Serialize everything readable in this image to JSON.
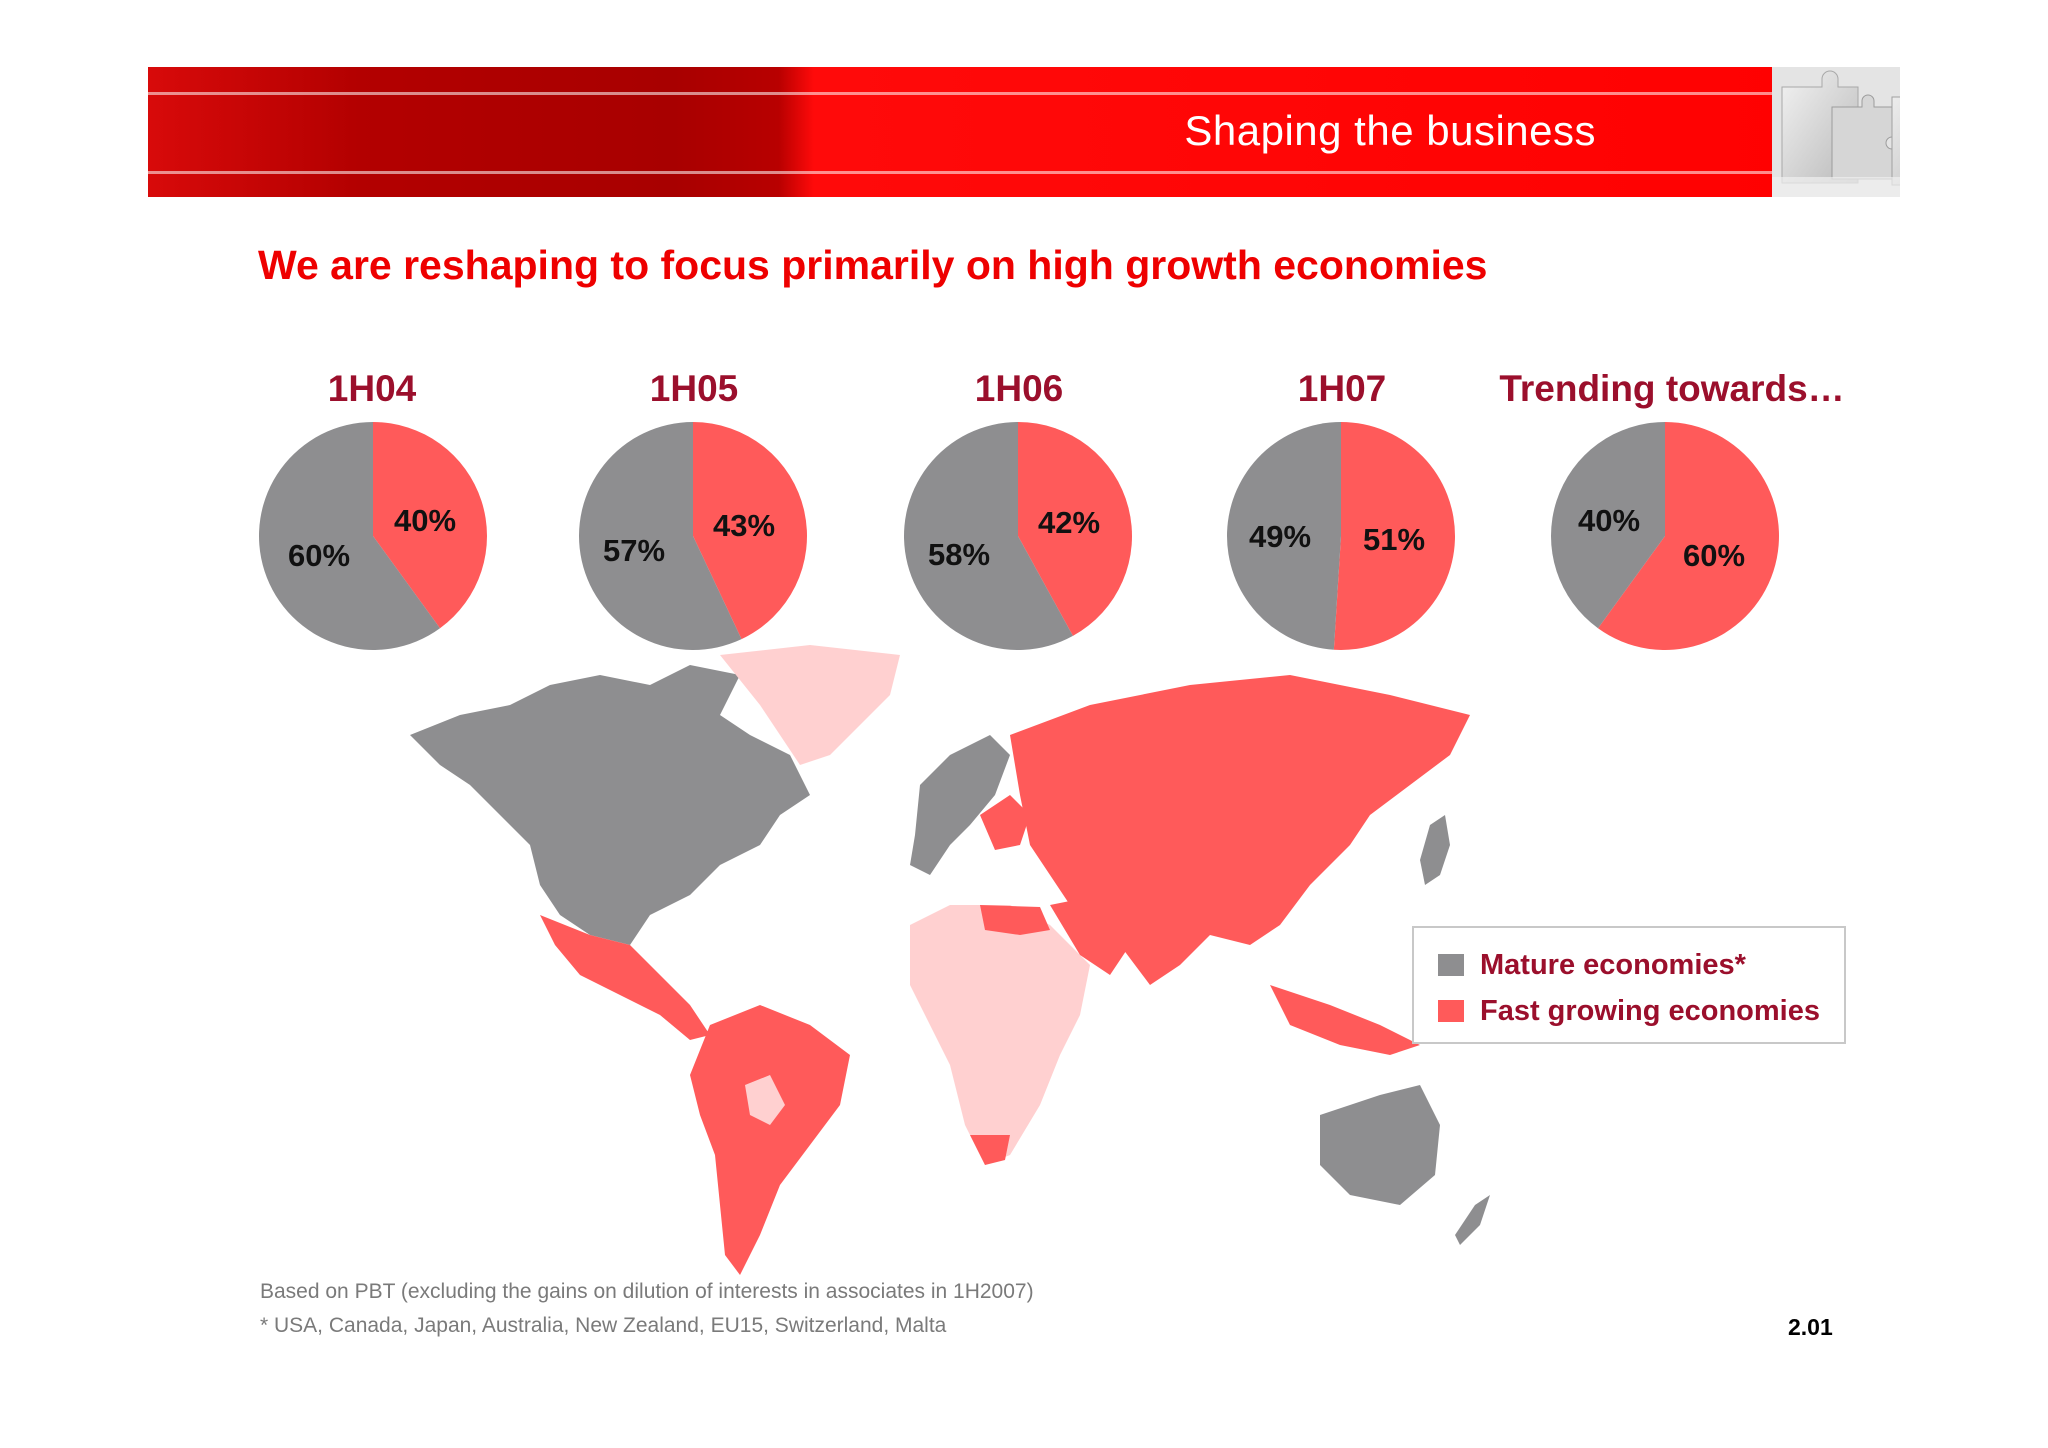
{
  "header": {
    "banner_title": "Shaping the business",
    "headline": "We are reshaping to focus primarily on high growth economies"
  },
  "colors": {
    "mature": "#8e8e90",
    "fast": "#ff5a5a",
    "other_countries": "#ffd0d0",
    "banner_red": "#ff0000",
    "title_maroon": "#9b0f2c"
  },
  "chart_data": {
    "type": "pie",
    "charts": [
      {
        "label": "1H04",
        "slices": [
          {
            "name": "Fast growing economies",
            "value": 40,
            "label": "40%"
          },
          {
            "name": "Mature economies*",
            "value": 60,
            "label": "60%"
          }
        ]
      },
      {
        "label": "1H05",
        "slices": [
          {
            "name": "Fast growing economies",
            "value": 43,
            "label": "43%"
          },
          {
            "name": "Mature economies*",
            "value": 57,
            "label": "57%"
          }
        ]
      },
      {
        "label": "1H06",
        "slices": [
          {
            "name": "Fast growing economies",
            "value": 42,
            "label": "42%"
          },
          {
            "name": "Mature economies*",
            "value": 58,
            "label": "58%"
          }
        ]
      },
      {
        "label": "1H07",
        "slices": [
          {
            "name": "Fast growing economies",
            "value": 51,
            "label": "51%"
          },
          {
            "name": "Mature economies*",
            "value": 49,
            "label": "49%"
          }
        ]
      },
      {
        "label": "Trending towards…",
        "slices": [
          {
            "name": "Fast growing economies",
            "value": 60,
            "label": "60%"
          },
          {
            "name": "Mature economies*",
            "value": 40,
            "label": "40%"
          }
        ]
      }
    ],
    "legend": {
      "placement": "bottom-right",
      "entries": [
        "Mature economies*",
        "Fast growing economies"
      ]
    }
  },
  "footer": {
    "note1": "Based on PBT (excluding the gains on dilution of interests in associates in 1H2007)",
    "note2": "* USA, Canada, Japan, Australia, New Zealand, EU15, Switzerland, Malta",
    "page_number": "2.01"
  }
}
